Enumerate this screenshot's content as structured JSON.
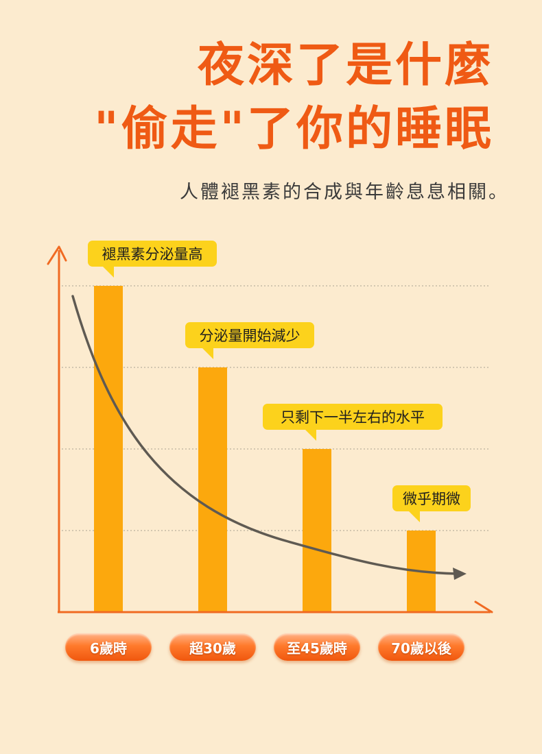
{
  "header": {
    "title_line1": "夜深了是什麼",
    "title_line2": "\"偷走\"了你的睡眠",
    "subtitle": "人體褪黑素的合成與年齡息息相關。"
  },
  "chart_data": {
    "type": "bar",
    "categories": [
      "6歲時",
      "超30歲",
      "至45歲時",
      "70歲以後"
    ],
    "values": [
      4,
      3,
      2,
      1
    ],
    "annotations": [
      "褪黑素分泌量高",
      "分泌量開始減少",
      "只剩下一半左右的水平",
      "微乎期微"
    ],
    "ylim": [
      0,
      4.4
    ],
    "grid": true,
    "trend_line": true,
    "colors": {
      "bar": "#fca80d",
      "axis": "#f06a22",
      "grid": "#b9b09e",
      "trend": "#5f5a52",
      "callout": "#fcd21c"
    }
  }
}
